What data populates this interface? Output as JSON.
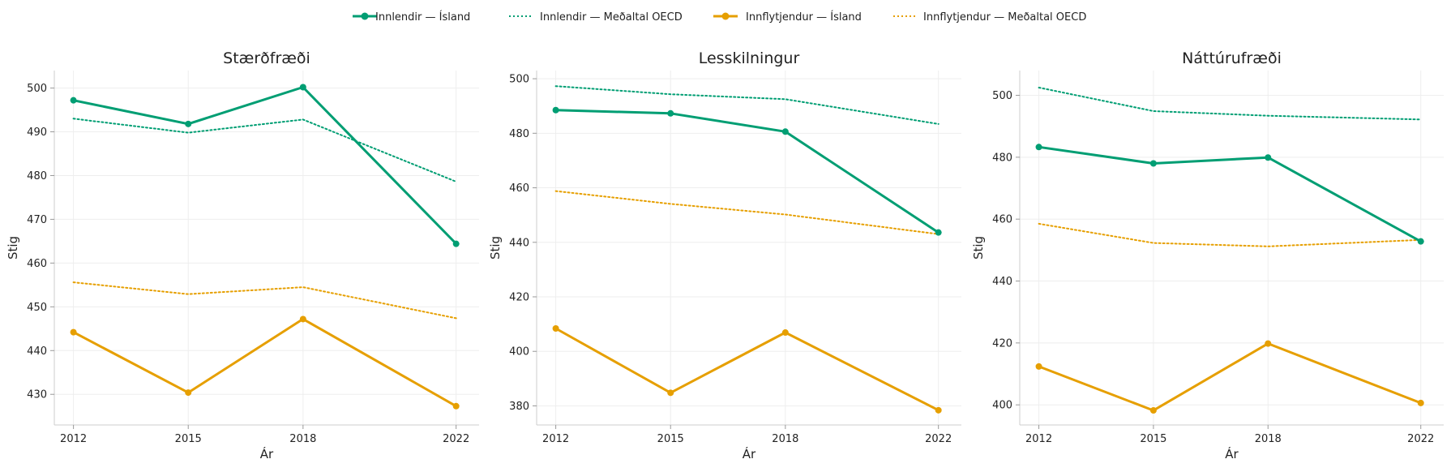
{
  "colors": {
    "innlendir": "#009E73",
    "innflytjendur": "#E69F00"
  },
  "legend": [
    {
      "label": "Innlendir — Ísland",
      "color": "#009E73",
      "style": "solid-marker"
    },
    {
      "label": "Innlendir — Meðaltal OECD",
      "color": "#009E73",
      "style": "dotted"
    },
    {
      "label": "Innflytjendur — Ísland",
      "color": "#E69F00",
      "style": "solid-marker"
    },
    {
      "label": "Innflytjendur — Meðaltal OECD",
      "color": "#E69F00",
      "style": "dotted"
    }
  ],
  "chart_data": [
    {
      "type": "line",
      "title": "Stærðfræði",
      "xlabel": "Ár",
      "ylabel": "Stig",
      "x": [
        2012,
        2015,
        2018,
        2022
      ],
      "ylim": [
        423,
        504
      ],
      "yticks": [
        430,
        440,
        450,
        460,
        470,
        480,
        490,
        500
      ],
      "grid": true,
      "series": [
        {
          "name": "Innlendir — Ísland",
          "color": "#009E73",
          "style": "solid-marker",
          "values": [
            497.2,
            491.8,
            500.2,
            464.4
          ]
        },
        {
          "name": "Innlendir — Meðaltal OECD",
          "color": "#009E73",
          "style": "dotted",
          "values": [
            493.0,
            489.8,
            492.8,
            478.6
          ]
        },
        {
          "name": "Innflytjendur — Ísland",
          "color": "#E69F00",
          "style": "solid-marker",
          "values": [
            444.2,
            430.4,
            447.2,
            427.3
          ]
        },
        {
          "name": "Innflytjendur — Meðaltal OECD",
          "color": "#E69F00",
          "style": "dotted",
          "values": [
            455.6,
            452.9,
            454.5,
            447.4
          ]
        }
      ]
    },
    {
      "type": "line",
      "title": "Lesskilningur",
      "xlabel": "Ár",
      "ylabel": "Stig",
      "x": [
        2012,
        2015,
        2018,
        2022
      ],
      "ylim": [
        373,
        503
      ],
      "yticks": [
        380,
        400,
        420,
        440,
        460,
        480,
        500
      ],
      "grid": true,
      "series": [
        {
          "name": "Innlendir — Ísland",
          "color": "#009E73",
          "style": "solid-marker",
          "values": [
            488.5,
            487.3,
            480.6,
            443.6
          ]
        },
        {
          "name": "Innlendir — Meðaltal OECD",
          "color": "#009E73",
          "style": "dotted",
          "values": [
            497.3,
            494.3,
            492.5,
            483.4
          ]
        },
        {
          "name": "Innflytjendur — Ísland",
          "color": "#E69F00",
          "style": "solid-marker",
          "values": [
            408.4,
            384.8,
            406.9,
            378.4
          ]
        },
        {
          "name": "Innflytjendur — Meðaltal OECD",
          "color": "#E69F00",
          "style": "dotted",
          "values": [
            458.8,
            454.1,
            450.2,
            443.0
          ]
        }
      ]
    },
    {
      "type": "line",
      "title": "Náttúrufræði",
      "xlabel": "Ár",
      "ylabel": "Stig",
      "x": [
        2012,
        2015,
        2018,
        2022
      ],
      "ylim": [
        393.5,
        508
      ],
      "yticks": [
        400,
        420,
        440,
        460,
        480,
        500
      ],
      "grid": true,
      "series": [
        {
          "name": "Innlendir — Ísland",
          "color": "#009E73",
          "style": "solid-marker",
          "values": [
            483.3,
            478.0,
            479.9,
            452.8
          ]
        },
        {
          "name": "Innlendir — Meðaltal OECD",
          "color": "#009E73",
          "style": "dotted",
          "values": [
            502.5,
            494.9,
            493.4,
            492.2
          ]
        },
        {
          "name": "Innflytjendur — Ísland",
          "color": "#E69F00",
          "style": "solid-marker",
          "values": [
            412.4,
            398.2,
            419.8,
            400.6
          ]
        },
        {
          "name": "Innflytjendur — Meðaltal OECD",
          "color": "#E69F00",
          "style": "dotted",
          "values": [
            458.5,
            452.3,
            451.2,
            453.3
          ]
        }
      ]
    }
  ]
}
